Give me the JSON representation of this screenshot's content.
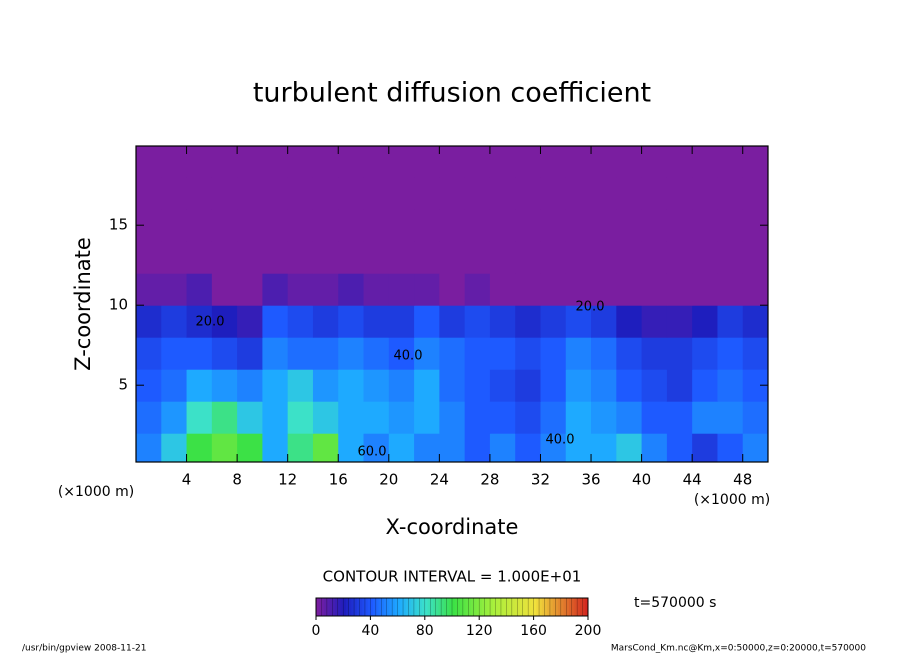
{
  "chart_data": {
    "type": "heatmap",
    "title": "turbulent diffusion coefficient",
    "x_label": "X-coordinate",
    "y_label": "Z-coordinate",
    "x_unit": "(×1000 m)",
    "y_unit": "(×1000 m)",
    "contour_interval": "CONTOUR INTERVAL = 1.000E+01",
    "time_label": "t=570000 s",
    "footer_left": "/usr/bin/gpview  2008-11-21",
    "footer_right": "MarsCond_Km.nc@Km,x=0:50000,z=0:20000,t=570000",
    "annotations": [
      "20.0",
      "40.0",
      "60.0",
      "20.0",
      "40.0"
    ],
    "xlim": [
      0,
      50
    ],
    "ylim": [
      0.2,
      19.95
    ],
    "xticks": [
      4,
      8,
      12,
      16,
      20,
      24,
      28,
      32,
      36,
      40,
      44,
      48
    ],
    "yticks": [
      5,
      10,
      15
    ],
    "clim": [
      0,
      200
    ],
    "cticks": [
      0,
      40,
      80,
      120,
      160,
      200
    ],
    "x": [
      1,
      3,
      5,
      7,
      9,
      11,
      13,
      15,
      17,
      19,
      21,
      23,
      25,
      27,
      29,
      31,
      33,
      35,
      37,
      39,
      41,
      43,
      45,
      47,
      49
    ],
    "z": [
      1,
      3,
      5,
      7,
      9,
      11,
      13,
      15,
      17,
      19
    ],
    "values": [
      [
        50,
        70,
        100,
        110,
        100,
        60,
        90,
        110,
        60,
        50,
        60,
        50,
        50,
        40,
        50,
        40,
        50,
        60,
        60,
        70,
        50,
        40,
        30,
        40,
        50
      ],
      [
        45,
        55,
        80,
        90,
        70,
        60,
        80,
        70,
        60,
        60,
        55,
        60,
        50,
        40,
        40,
        35,
        45,
        60,
        55,
        50,
        40,
        40,
        50,
        50,
        45
      ],
      [
        40,
        45,
        60,
        55,
        50,
        60,
        70,
        55,
        60,
        55,
        50,
        60,
        45,
        40,
        35,
        30,
        40,
        55,
        50,
        40,
        35,
        30,
        40,
        45,
        40
      ],
      [
        35,
        40,
        40,
        35,
        30,
        50,
        45,
        45,
        50,
        45,
        40,
        50,
        45,
        40,
        40,
        35,
        40,
        50,
        45,
        35,
        30,
        30,
        35,
        40,
        35
      ],
      [
        25,
        30,
        25,
        20,
        15,
        40,
        35,
        30,
        35,
        30,
        30,
        40,
        30,
        35,
        30,
        25,
        30,
        35,
        30,
        20,
        15,
        15,
        20,
        30,
        25
      ],
      [
        5,
        5,
        10,
        0,
        0,
        10,
        5,
        5,
        10,
        5,
        5,
        5,
        0,
        5,
        0,
        0,
        0,
        0,
        0,
        0,
        0,
        0,
        0,
        0,
        0
      ],
      [
        0,
        0,
        0,
        0,
        0,
        0,
        0,
        0,
        0,
        0,
        0,
        0,
        0,
        0,
        0,
        0,
        0,
        0,
        0,
        0,
        0,
        0,
        0,
        0,
        0
      ],
      [
        0,
        0,
        0,
        0,
        0,
        0,
        0,
        0,
        0,
        0,
        0,
        0,
        0,
        0,
        0,
        0,
        0,
        0,
        0,
        0,
        0,
        0,
        0,
        0,
        0
      ],
      [
        0,
        0,
        0,
        0,
        0,
        0,
        0,
        0,
        0,
        0,
        0,
        0,
        0,
        0,
        0,
        0,
        0,
        0,
        0,
        0,
        0,
        0,
        0,
        0,
        0
      ],
      [
        0,
        0,
        0,
        0,
        0,
        0,
        0,
        0,
        0,
        0,
        0,
        0,
        0,
        0,
        0,
        0,
        0,
        0,
        0,
        0,
        0,
        0,
        0,
        0,
        0
      ]
    ]
  }
}
